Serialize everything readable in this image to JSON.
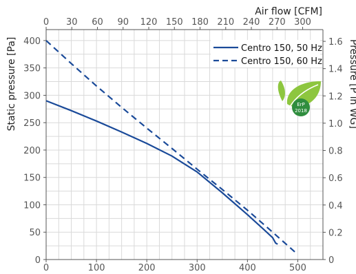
{
  "chart_data": {
    "type": "line",
    "title": "",
    "xlabel_bottom": "",
    "xlabel_top": "Air flow [CFM]",
    "ylabel_left": "Static pressure [Pa]",
    "ylabel_right": "Pressure [P in WG]",
    "xlim": [
      0,
      550
    ],
    "ylim": [
      0,
      420
    ],
    "x_ticks_bottom": [
      "0",
      "100",
      "200",
      "300",
      "400",
      "500"
    ],
    "x_ticks_top": [
      "0",
      "30",
      "60",
      "90",
      "120",
      "150",
      "180",
      "210",
      "240",
      "270",
      "300"
    ],
    "y_ticks_left": [
      "0",
      "50",
      "100",
      "150",
      "200",
      "250",
      "300",
      "350",
      "400"
    ],
    "y_ticks_right": [
      "0",
      "0.2",
      "0.4",
      "0.6",
      "0.8",
      "1.0",
      "1.2",
      "1.4",
      "1.6"
    ],
    "grid": true,
    "legend_position": "top-right",
    "series": [
      {
        "name": "Centro 150, 50 Hz",
        "style": "solid",
        "color": "#1a4a99",
        "x": [
          0,
          50,
          100,
          150,
          200,
          250,
          300,
          350,
          400,
          430,
          450,
          456,
          460
        ],
        "y": [
          290,
          272,
          253,
          233,
          212,
          189,
          160,
          122,
          82,
          57,
          40,
          30,
          28
        ]
      },
      {
        "name": "Centro 150, 60 Hz",
        "style": "dashed",
        "color": "#1a4a99",
        "x": [
          0,
          50,
          100,
          150,
          200,
          250,
          300,
          350,
          400,
          450,
          500
        ],
        "y": [
          400,
          358,
          317,
          278,
          240,
          203,
          165,
          128,
          90,
          50,
          9
        ]
      }
    ]
  },
  "badge": {
    "line1": "ErP",
    "line2": "2018",
    "colors": {
      "light": "#8dc63f",
      "dark": "#2f8d3e"
    }
  },
  "colors": {
    "grid": "#d9d9d9",
    "axis": "#555555",
    "line": "#1a4a99"
  }
}
